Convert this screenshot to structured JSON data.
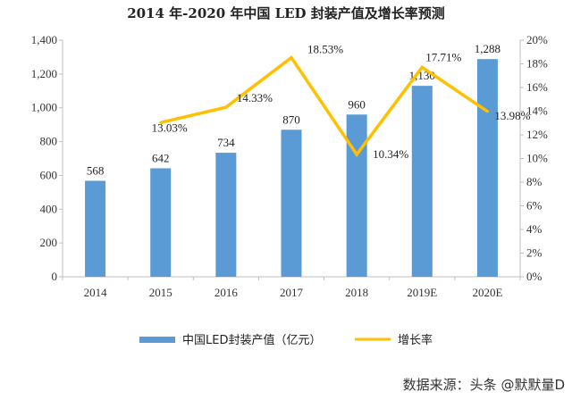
{
  "chart_data": {
    "type": "bar",
    "title": "2014 年-2020 年中国 LED 封装产值及增长率预测",
    "categories": [
      "2014",
      "2015",
      "2016",
      "2017",
      "2018",
      "2019E",
      "2020E"
    ],
    "series": [
      {
        "name": "中国LED封装产值（亿元）",
        "type": "bar",
        "axis": "left",
        "color": "#5B9BD5",
        "values": [
          568,
          642,
          734,
          870,
          960,
          1130,
          1288
        ],
        "labels": [
          "568",
          "642",
          "734",
          "870",
          "960",
          "1,130",
          "1,288"
        ]
      },
      {
        "name": "增长率",
        "type": "line",
        "axis": "right",
        "color": "#FFC000",
        "values": [
          null,
          13.03,
          14.33,
          18.53,
          10.34,
          17.71,
          13.98
        ],
        "labels": [
          null,
          "13.03%",
          "14.33%",
          "18.53%",
          "10.34%",
          "17.71%",
          "13.98%"
        ]
      }
    ],
    "y_left": {
      "ylim": [
        0,
        1400
      ],
      "ticks": [
        "0",
        "200",
        "400",
        "600",
        "800",
        "1,000",
        "1,200",
        "1,400"
      ]
    },
    "y_right": {
      "ylim": [
        0,
        20
      ],
      "ticks": [
        "0%",
        "2%",
        "4%",
        "6%",
        "8%",
        "10%",
        "12%",
        "14%",
        "16%",
        "18%",
        "20%"
      ]
    },
    "legend": "bottom",
    "grid": false
  },
  "source_note": "数据来源：头条 @默默量D"
}
